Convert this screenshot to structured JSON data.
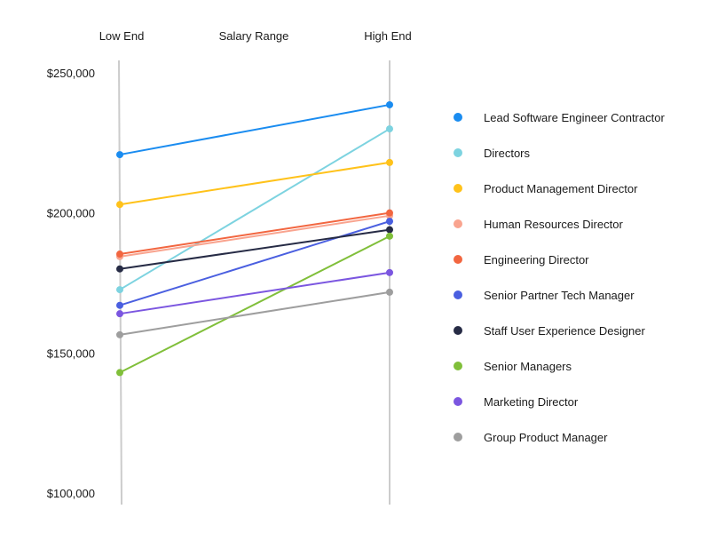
{
  "chart_data": {
    "type": "line",
    "subtype": "slope",
    "title": "Salary Range",
    "categories": [
      "Low End",
      "High End"
    ],
    "ylim": [
      100000,
      250000
    ],
    "yticks": [
      100000,
      150000,
      200000,
      250000
    ],
    "ytick_labels": [
      "$100,000",
      "$150,000",
      "$200,000",
      "$250,000"
    ],
    "legend_position": "right",
    "grid": false,
    "series": [
      {
        "name": "Lead Software Engineer Contractor",
        "color": "#1a8cf0",
        "values": [
          220800,
          238600
        ]
      },
      {
        "name": "Directors",
        "color": "#7dd3e0",
        "values": [
          172600,
          230000
        ]
      },
      {
        "name": "Product Management Director",
        "color": "#ffc21a",
        "values": [
          203000,
          218000
        ]
      },
      {
        "name": "Human Resources Director",
        "color": "#f9a48f",
        "values": [
          184400,
          199000
        ]
      },
      {
        "name": "Engineering Director",
        "color": "#f26640",
        "values": [
          185300,
          200000
        ]
      },
      {
        "name": "Senior Partner Tech Manager",
        "color": "#4a5fe0",
        "values": [
          167000,
          197000
        ]
      },
      {
        "name": "Staff User Experience Designer",
        "color": "#262b45",
        "values": [
          180000,
          194000
        ]
      },
      {
        "name": "Senior Managers",
        "color": "#80bf3a",
        "values": [
          143000,
          191700
        ]
      },
      {
        "name": "Marketing Director",
        "color": "#7b56e0",
        "values": [
          164000,
          178700
        ]
      },
      {
        "name": "Group Product Manager",
        "color": "#9e9e9e",
        "values": [
          156500,
          171700
        ]
      }
    ]
  }
}
